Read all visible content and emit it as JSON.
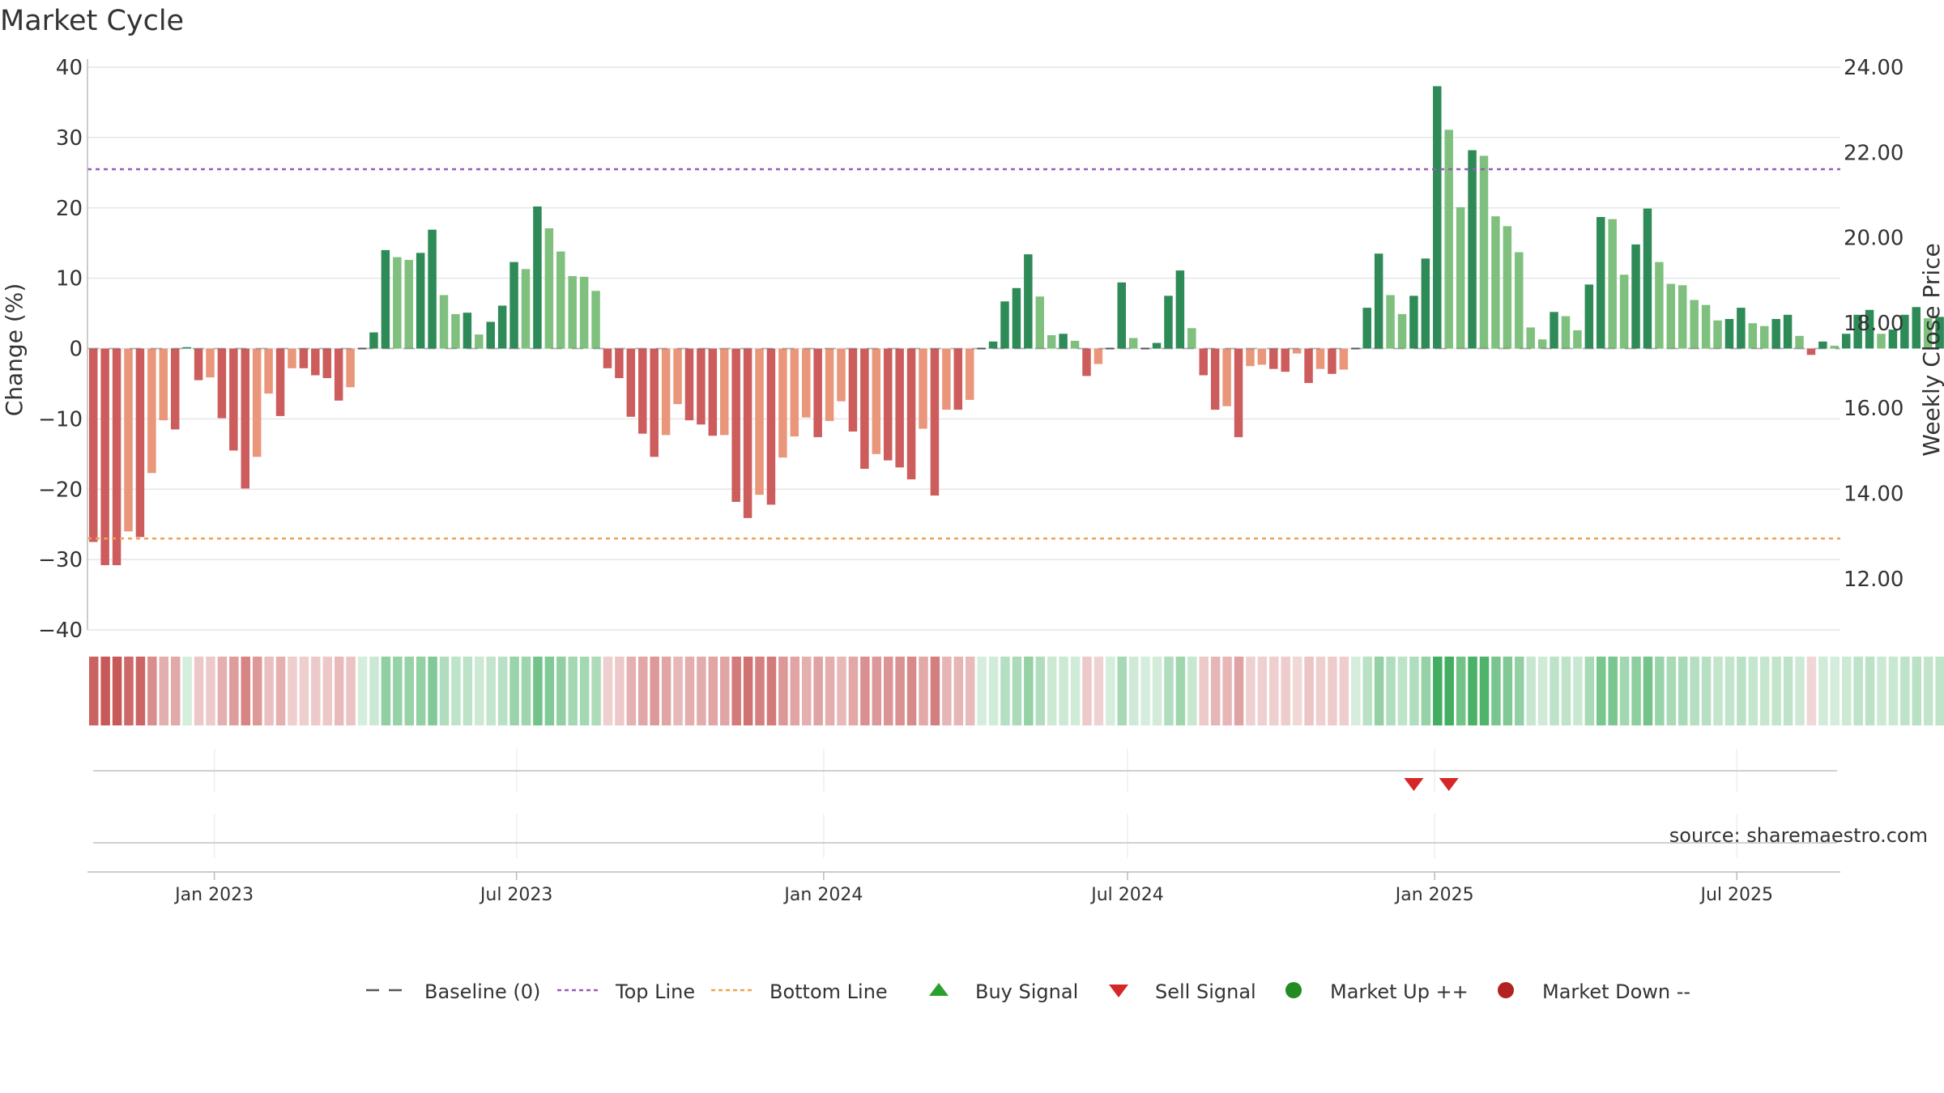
{
  "chart_data": {
    "type": "bar",
    "title": "Market Cycle",
    "ylabel": "Change (%)",
    "y2label": "Weekly Close Price",
    "ylim": [
      -40,
      40
    ],
    "y_ticks": [
      40,
      30,
      20,
      10,
      0,
      -10,
      -20,
      -30,
      -40
    ],
    "y2lim": [
      10.8,
      24.0
    ],
    "y2_ticks": [
      "24.00",
      "22.00",
      "20.00",
      "18.00",
      "16.00",
      "14.00",
      "12.00"
    ],
    "x_range": [
      "2022-10-17",
      "2025-09-01"
    ],
    "x_ticks": [
      {
        "date": "2023-01-01",
        "label": "Jan 2023"
      },
      {
        "date": "2023-07-01",
        "label": "Jul 2023"
      },
      {
        "date": "2024-01-01",
        "label": "Jan 2024"
      },
      {
        "date": "2024-07-01",
        "label": "Jul 2024"
      },
      {
        "date": "2025-01-01",
        "label": "Jan 2025"
      },
      {
        "date": "2025-07-01",
        "label": "Jul 2025"
      }
    ],
    "first_week": "2022-10-17",
    "top_line": 25.5,
    "bottom_line": -27,
    "values": [
      -27.5,
      -30.8,
      -30.8,
      -26,
      -26.8,
      -17.7,
      -10.2,
      -11.5,
      0.2,
      -4.5,
      -4.1,
      -9.9,
      -14.5,
      -19.9,
      -15.4,
      -6.4,
      -9.6,
      -2.8,
      -2.8,
      -3.8,
      -4.2,
      -7.4,
      -5.5,
      0,
      2.3,
      14,
      13,
      12.6,
      13.6,
      16.9,
      7.6,
      4.9,
      5.1,
      2,
      3.8,
      6.1,
      12.3,
      11.3,
      20.2,
      17.1,
      13.8,
      10.3,
      10.2,
      8.2,
      -2.8,
      -4.2,
      -9.7,
      -12.1,
      -15.4,
      -12.3,
      -7.9,
      -10.2,
      -10.8,
      -12.4,
      -12.3,
      -21.8,
      -24.1,
      -20.8,
      -22.2,
      -15.5,
      -12.5,
      -9.8,
      -12.6,
      -10.3,
      -7.5,
      -11.8,
      -17.1,
      -15,
      -15.9,
      -16.9,
      -18.6,
      -11.4,
      -20.9,
      -8.7,
      -8.7,
      -7.3,
      0,
      1,
      6.7,
      8.6,
      13.4,
      7.4,
      1.9,
      2.1,
      1.1,
      -3.9,
      -2.2,
      0,
      9.4,
      1.5,
      0,
      0.8,
      7.5,
      11.1,
      2.9,
      -3.8,
      -8.7,
      -8.2,
      -12.6,
      -2.5,
      -2.3,
      -2.9,
      -3.3,
      -0.7,
      -4.9,
      -2.9,
      -3.6,
      -3,
      0,
      5.8,
      13.5,
      7.6,
      4.9,
      7.5,
      12.8,
      37.3,
      31.1,
      20.1,
      28.2,
      27.4,
      18.8,
      17.4,
      13.7,
      3,
      1.3,
      5.2,
      4.6,
      2.6,
      9.1,
      18.7,
      18.4,
      10.5,
      14.8,
      19.9,
      12.3,
      9.2,
      9,
      6.9,
      6.2,
      4,
      4.2,
      5.8,
      3.6,
      3.2,
      4.2,
      4.8,
      1.8,
      -0.9,
      1,
      0.4,
      2.1,
      4.8,
      5.5,
      2.1,
      2.7,
      4.8,
      5.9,
      4.3,
      4.5,
      3.2,
      2
    ],
    "signals": [
      {
        "type": "sell",
        "week": 113
      },
      {
        "type": "sell",
        "week": 116
      }
    ],
    "colors": {
      "up_strong": "#2e8b57",
      "up_weak": "#7fc07f",
      "down_strong": "#cd5c5c",
      "down_weak": "#e9967a",
      "top_line": "#9b59b6",
      "bottom_line": "#f0a050",
      "buy": "#2ca02c",
      "sell": "#d62728",
      "market_up": "#228b22",
      "market_down": "#b22222",
      "baseline": "#555555"
    },
    "legend": [
      {
        "label": "Baseline (0)",
        "marker": "dashed-line",
        "color": "#555555"
      },
      {
        "label": "Top Line",
        "marker": "dotted-line",
        "color": "#9b59b6"
      },
      {
        "label": "Bottom Line",
        "marker": "dotted-line",
        "color": "#f0a050"
      },
      {
        "label": "Buy Signal",
        "marker": "triangle-up",
        "color": "#2ca02c"
      },
      {
        "label": "Sell Signal",
        "marker": "triangle-down",
        "color": "#d62728"
      },
      {
        "label": "Market Up ++",
        "marker": "circle",
        "color": "#228b22"
      },
      {
        "label": "Market Down --",
        "marker": "circle",
        "color": "#b22222"
      }
    ],
    "legend_position": "bottom-center",
    "grid": true,
    "source": "source: sharemaestro.com"
  }
}
